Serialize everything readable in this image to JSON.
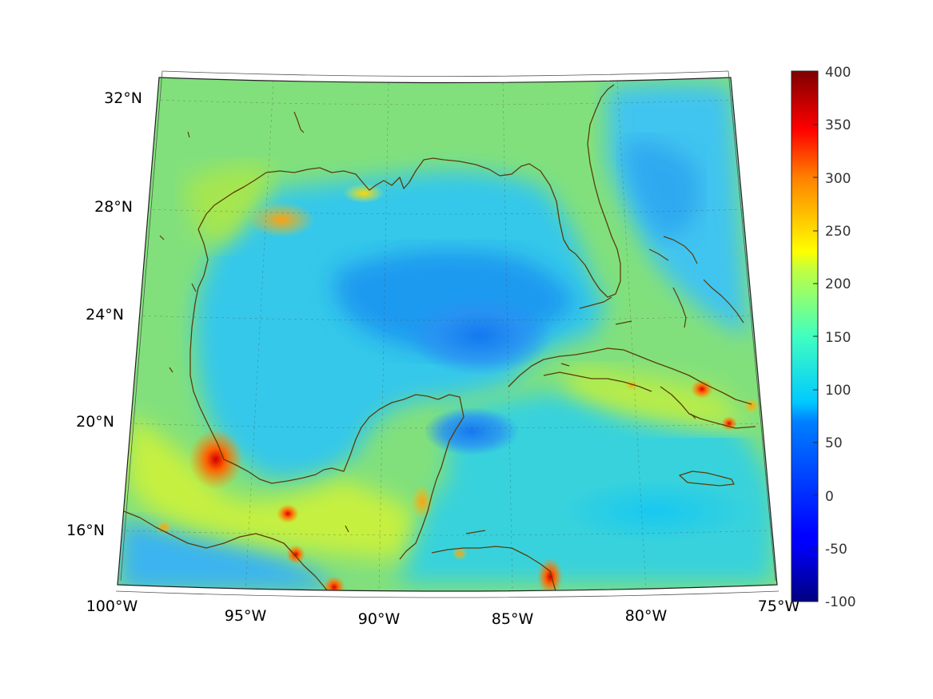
{
  "map": {
    "lat_labels": [
      "32°N",
      "28°N",
      "24°N",
      "20°N",
      "16°N"
    ],
    "lon_labels": [
      "100°W",
      "95°W",
      "90°W",
      "85°W",
      "80°W",
      "75°W"
    ],
    "colorbar": {
      "min": -100,
      "max": 400,
      "tick_labels": [
        "400",
        "350",
        "300",
        "250",
        "200",
        "150",
        "100",
        "50",
        "0",
        "-50",
        "-100"
      ],
      "colormap": "jet"
    },
    "colors": {
      "background_field": "#7fe07a",
      "coastline": "#5a3d08"
    }
  }
}
